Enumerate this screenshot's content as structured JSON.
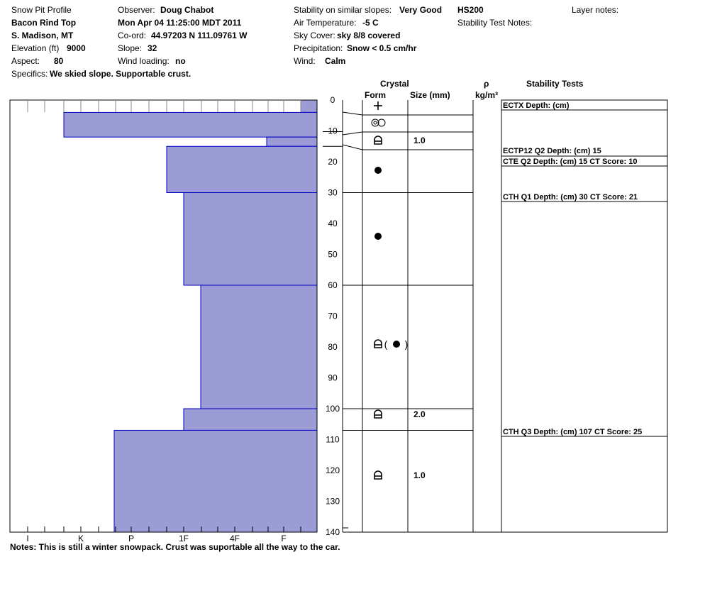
{
  "header": {
    "title": "Snow Pit Profile",
    "location_name": "Bacon Rind Top",
    "region": "S. Madison, MT",
    "elevation_label": "Elevation (ft)",
    "elevation_value": "9000",
    "aspect_label": "Aspect:",
    "aspect_value": "80",
    "specifics_label": "Specifics:",
    "specifics_value": "We skied slope. Supportable crust.",
    "observer_label": "Observer:",
    "observer_value": "Doug Chabot",
    "datetime": "Mon Apr 04 11:25:00 MDT 2011",
    "coord_label": "Co-ord:",
    "coord_value": "44.97203 N 111.09761 W",
    "slope_label": "Slope:",
    "slope_value": "32",
    "wind_loading_label": "Wind loading:",
    "wind_loading_value": "no",
    "stability_label": "Stability on similar slopes:",
    "stability_value": "Very Good",
    "air_temp_label": "Air Temperature:",
    "air_temp_value": "-5 C",
    "sky_label": "Sky Cover:",
    "sky_value": "sky 8/8 covered",
    "precip_label": "Precipitation:",
    "precip_value": "Snow < 0.5 cm/hr",
    "wind_label": "Wind:",
    "wind_value": "Calm",
    "hs": "HS200",
    "layer_notes_label": "Layer notes:",
    "stability_test_notes_label": "Stability Test Notes:"
  },
  "columns": {
    "crystal": "Crystal",
    "form": "Form",
    "size": "Size (mm)",
    "rho": "ρ",
    "density_unit": "kg/m³",
    "stability_tests": "Stability Tests"
  },
  "notes": "Notes:  This is still a winter snowpack.  Crust was suportable all the way to the car.",
  "chart_data": {
    "type": "bar",
    "orientation": "horizontal",
    "title": "Snow Pit Profile",
    "ylim": [
      0,
      140
    ],
    "y_ticks": [
      0,
      10,
      20,
      30,
      40,
      50,
      60,
      70,
      80,
      90,
      100,
      110,
      120,
      130,
      140
    ],
    "x_categories": [
      "I",
      "K",
      "P",
      "1F",
      "4F",
      "F"
    ],
    "colors": {
      "bar_fill": "#9b9bd6",
      "bar_edge": "#0000c0"
    },
    "hardness_profile": [
      {
        "top": 0,
        "bottom": 4,
        "hardness": "F+"
      },
      {
        "top": 4,
        "bottom": 12,
        "hardness": "K-"
      },
      {
        "top": 12,
        "bottom": 15,
        "hardness": "F-"
      },
      {
        "top": 15,
        "bottom": 30,
        "hardness": "1F-"
      },
      {
        "top": 30,
        "bottom": 60,
        "hardness": "1F"
      },
      {
        "top": 60,
        "bottom": 100,
        "hardness": "1F+"
      },
      {
        "top": 100,
        "bottom": 107,
        "hardness": "1F"
      },
      {
        "top": 107,
        "bottom": 140,
        "hardness": "P-"
      }
    ],
    "layers": [
      {
        "top": 0,
        "bottom": 5,
        "form": "precipitation-particles",
        "size": ""
      },
      {
        "top": 5,
        "bottom": 11,
        "form": "decomposing-fragments",
        "size": ""
      },
      {
        "top": 11,
        "bottom": 16,
        "form": "faceted-rounded",
        "size": "1.0"
      },
      {
        "top": 16,
        "bottom": 30,
        "form": "rounded-grains",
        "size": ""
      },
      {
        "top": 30,
        "bottom": 60,
        "form": "rounded-grains",
        "size": ""
      },
      {
        "top": 60,
        "bottom": 100,
        "form": "faceted-rounded-with-rounded",
        "size": ""
      },
      {
        "top": 100,
        "bottom": 107,
        "form": "faceted-rounded",
        "size": "2.0"
      },
      {
        "top": 107,
        "bottom": 140,
        "form": "faceted-rounded",
        "size": "1.0"
      }
    ],
    "stability_tests": [
      {
        "label": "ECTX   Depth: (cm)",
        "depth": 0
      },
      {
        "label": "ECTP12 Q2 Depth: (cm) 15",
        "depth": 15
      },
      {
        "label": "CTE Q2 Depth: (cm) 15 CT Score: 10",
        "depth": 15
      },
      {
        "label": "CTH Q1 Depth: (cm) 30 CT Score: 21",
        "depth": 30
      },
      {
        "label": "CTH Q3 Depth: (cm) 107 CT Score: 25",
        "depth": 107
      }
    ]
  }
}
